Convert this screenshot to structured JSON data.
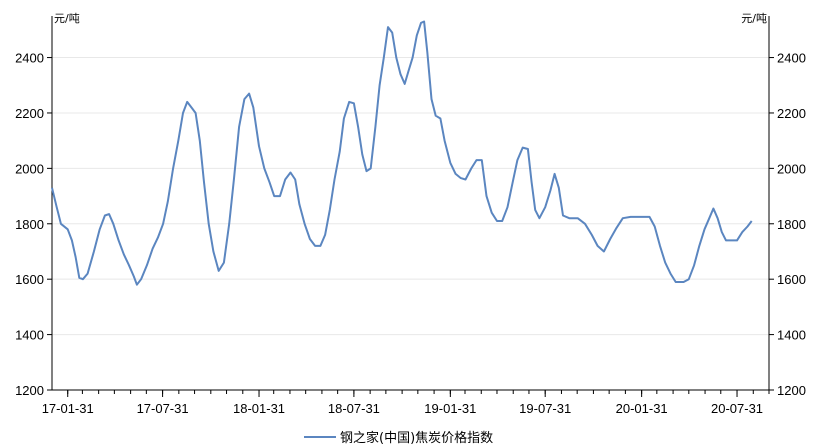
{
  "chart_data": {
    "type": "line",
    "y_unit_left": "元/吨",
    "y_unit_right": "元/吨",
    "ylim": [
      1200,
      2550
    ],
    "y_ticks": [
      1200,
      1400,
      1600,
      1800,
      2000,
      2200,
      2400
    ],
    "x_tick_labels": [
      {
        "date": "2017-01-31",
        "label": "17-01-31"
      },
      {
        "date": "2017-07-31",
        "label": "17-07-31"
      },
      {
        "date": "2018-01-31",
        "label": "18-01-31"
      },
      {
        "date": "2018-07-31",
        "label": "18-07-31"
      },
      {
        "date": "2019-01-31",
        "label": "19-01-31"
      },
      {
        "date": "2019-07-31",
        "label": "19-07-31"
      },
      {
        "date": "2020-01-31",
        "label": "20-01-31"
      },
      {
        "date": "2020-07-31",
        "label": "20-07-31"
      }
    ],
    "xlim": [
      "2017-01-01",
      "2020-09-30"
    ],
    "grid": "horizontal",
    "legend_position": "bottom",
    "series": [
      {
        "name": "钢之家(中国)焦炭价格指数",
        "color": "#5b86c0",
        "points": [
          [
            "2017-01-01",
            1930
          ],
          [
            "2017-01-10",
            1860
          ],
          [
            "2017-01-18",
            1800
          ],
          [
            "2017-01-31",
            1780
          ],
          [
            "2017-02-08",
            1740
          ],
          [
            "2017-02-15",
            1680
          ],
          [
            "2017-02-22",
            1605
          ],
          [
            "2017-03-01",
            1600
          ],
          [
            "2017-03-10",
            1620
          ],
          [
            "2017-03-22",
            1700
          ],
          [
            "2017-04-02",
            1780
          ],
          [
            "2017-04-12",
            1830
          ],
          [
            "2017-04-20",
            1835
          ],
          [
            "2017-04-28",
            1800
          ],
          [
            "2017-05-08",
            1740
          ],
          [
            "2017-05-18",
            1690
          ],
          [
            "2017-05-28",
            1650
          ],
          [
            "2017-06-06",
            1610
          ],
          [
            "2017-06-12",
            1580
          ],
          [
            "2017-06-20",
            1600
          ],
          [
            "2017-07-01",
            1650
          ],
          [
            "2017-07-12",
            1710
          ],
          [
            "2017-07-22",
            1750
          ],
          [
            "2017-08-01",
            1800
          ],
          [
            "2017-08-10",
            1880
          ],
          [
            "2017-08-20",
            2000
          ],
          [
            "2017-08-30",
            2100
          ],
          [
            "2017-09-08",
            2200
          ],
          [
            "2017-09-16",
            2240
          ],
          [
            "2017-09-24",
            2220
          ],
          [
            "2017-10-02",
            2200
          ],
          [
            "2017-10-10",
            2100
          ],
          [
            "2017-10-18",
            1950
          ],
          [
            "2017-10-27",
            1800
          ],
          [
            "2017-11-05",
            1700
          ],
          [
            "2017-11-15",
            1630
          ],
          [
            "2017-11-25",
            1660
          ],
          [
            "2017-12-05",
            1800
          ],
          [
            "2017-12-14",
            1960
          ],
          [
            "2017-12-24",
            2150
          ],
          [
            "2018-01-03",
            2250
          ],
          [
            "2018-01-12",
            2270
          ],
          [
            "2018-01-20",
            2220
          ],
          [
            "2018-01-31",
            2080
          ],
          [
            "2018-02-10",
            2000
          ],
          [
            "2018-02-20",
            1950
          ],
          [
            "2018-03-01",
            1900
          ],
          [
            "2018-03-12",
            1900
          ],
          [
            "2018-03-22",
            1960
          ],
          [
            "2018-04-01",
            1985
          ],
          [
            "2018-04-10",
            1960
          ],
          [
            "2018-04-18",
            1870
          ],
          [
            "2018-04-28",
            1800
          ],
          [
            "2018-05-08",
            1745
          ],
          [
            "2018-05-18",
            1720
          ],
          [
            "2018-05-28",
            1720
          ],
          [
            "2018-06-06",
            1760
          ],
          [
            "2018-06-15",
            1850
          ],
          [
            "2018-06-24",
            1960
          ],
          [
            "2018-07-04",
            2060
          ],
          [
            "2018-07-12",
            2180
          ],
          [
            "2018-07-22",
            2240
          ],
          [
            "2018-07-31",
            2235
          ],
          [
            "2018-08-08",
            2150
          ],
          [
            "2018-08-16",
            2050
          ],
          [
            "2018-08-24",
            1990
          ],
          [
            "2018-09-01",
            2000
          ],
          [
            "2018-09-10",
            2150
          ],
          [
            "2018-09-18",
            2300
          ],
          [
            "2018-09-26",
            2400
          ],
          [
            "2018-10-04",
            2510
          ],
          [
            "2018-10-12",
            2490
          ],
          [
            "2018-10-20",
            2400
          ],
          [
            "2018-10-28",
            2340
          ],
          [
            "2018-11-05",
            2305
          ],
          [
            "2018-11-12",
            2350
          ],
          [
            "2018-11-20",
            2400
          ],
          [
            "2018-11-28",
            2480
          ],
          [
            "2018-12-06",
            2525
          ],
          [
            "2018-12-12",
            2530
          ],
          [
            "2018-12-18",
            2420
          ],
          [
            "2018-12-26",
            2250
          ],
          [
            "2019-01-03",
            2190
          ],
          [
            "2019-01-12",
            2180
          ],
          [
            "2019-01-20",
            2100
          ],
          [
            "2019-01-31",
            2020
          ],
          [
            "2019-02-10",
            1980
          ],
          [
            "2019-02-20",
            1965
          ],
          [
            "2019-03-01",
            1960
          ],
          [
            "2019-03-12",
            2000
          ],
          [
            "2019-03-22",
            2030
          ],
          [
            "2019-04-01",
            2030
          ],
          [
            "2019-04-10",
            1900
          ],
          [
            "2019-04-20",
            1840
          ],
          [
            "2019-04-30",
            1810
          ],
          [
            "2019-05-10",
            1810
          ],
          [
            "2019-05-20",
            1860
          ],
          [
            "2019-05-30",
            1950
          ],
          [
            "2019-06-08",
            2030
          ],
          [
            "2019-06-18",
            2075
          ],
          [
            "2019-06-28",
            2070
          ],
          [
            "2019-07-05",
            1950
          ],
          [
            "2019-07-12",
            1850
          ],
          [
            "2019-07-20",
            1820
          ],
          [
            "2019-07-31",
            1860
          ],
          [
            "2019-08-10",
            1920
          ],
          [
            "2019-08-18",
            1980
          ],
          [
            "2019-08-26",
            1930
          ],
          [
            "2019-09-03",
            1830
          ],
          [
            "2019-09-15",
            1820
          ],
          [
            "2019-10-01",
            1820
          ],
          [
            "2019-10-15",
            1800
          ],
          [
            "2019-10-28",
            1760
          ],
          [
            "2019-11-08",
            1720
          ],
          [
            "2019-11-20",
            1700
          ],
          [
            "2019-12-02",
            1745
          ],
          [
            "2019-12-14",
            1785
          ],
          [
            "2019-12-26",
            1820
          ],
          [
            "2020-01-10",
            1825
          ],
          [
            "2020-01-31",
            1825
          ],
          [
            "2020-02-15",
            1825
          ],
          [
            "2020-02-25",
            1790
          ],
          [
            "2020-03-06",
            1720
          ],
          [
            "2020-03-16",
            1660
          ],
          [
            "2020-03-26",
            1620
          ],
          [
            "2020-04-05",
            1590
          ],
          [
            "2020-04-20",
            1590
          ],
          [
            "2020-04-30",
            1600
          ],
          [
            "2020-05-10",
            1650
          ],
          [
            "2020-05-20",
            1720
          ],
          [
            "2020-05-30",
            1780
          ],
          [
            "2020-06-08",
            1820
          ],
          [
            "2020-06-16",
            1855
          ],
          [
            "2020-06-24",
            1820
          ],
          [
            "2020-07-02",
            1770
          ],
          [
            "2020-07-10",
            1740
          ],
          [
            "2020-07-20",
            1740
          ],
          [
            "2020-07-31",
            1740
          ],
          [
            "2020-08-10",
            1770
          ],
          [
            "2020-08-20",
            1790
          ],
          [
            "2020-08-28",
            1810
          ]
        ]
      }
    ]
  }
}
